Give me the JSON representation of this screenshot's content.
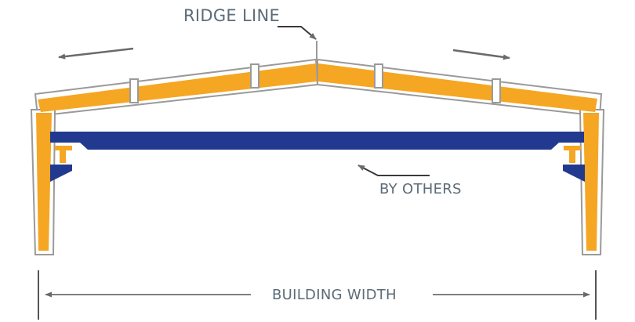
{
  "labels": {
    "ridge_line": "RIDGE LINE",
    "by_others": "BY OTHERS",
    "building_width": "BUILDING WIDTH"
  },
  "colors": {
    "steel": "#f5a623",
    "crane": "#213a8f",
    "outline": "#9a9a9a",
    "line": "#5a5a5a",
    "text": "#5b6b78"
  }
}
